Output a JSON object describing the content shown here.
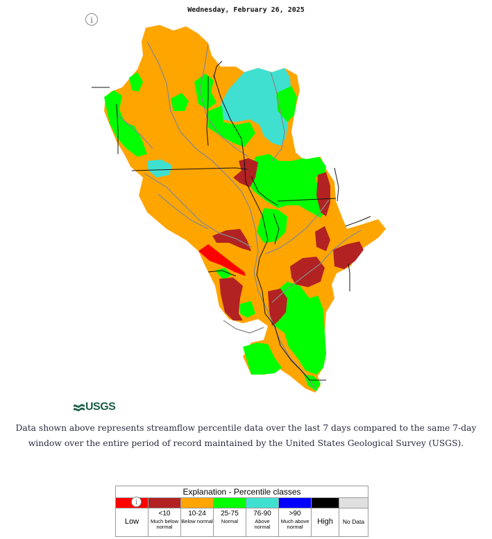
{
  "header": {
    "date": "Wednesday, February 26, 2025"
  },
  "info_icon": "info-icon",
  "colors": {
    "low": "#ff0000",
    "much_below": "#b22222",
    "below": "#ffa500",
    "normal": "#00ff00",
    "above": "#40e0d0",
    "much_above": "#0000ff",
    "high": "#000000",
    "no_data": "#e0e0e0"
  },
  "logo": {
    "text": "USGS"
  },
  "description": "Data shown above represents streamflow percentile data over the last 7 days compared to the same 7-day window over the entire period of record maintained by the United States Geological Survey (USGS).",
  "legend": {
    "title": "Explanation - Percentile classes",
    "classes": [
      {
        "label": "Low",
        "range": "",
        "desc": "",
        "color": "#ff0000"
      },
      {
        "label": "",
        "range": "<10",
        "desc": "Much below normal",
        "color": "#b22222"
      },
      {
        "label": "",
        "range": "10-24",
        "desc": "Below normal",
        "color": "#ffa500"
      },
      {
        "label": "",
        "range": "25-75",
        "desc": "Normal",
        "color": "#00ff00"
      },
      {
        "label": "",
        "range": "76-90",
        "desc": "Above normal",
        "color": "#40e0d0"
      },
      {
        "label": "",
        "range": ">90",
        "desc": "Much above normal",
        "color": "#0000ff"
      },
      {
        "label": "High",
        "range": "",
        "desc": "",
        "color": "#000000"
      },
      {
        "label": "No Data",
        "range": "",
        "desc": "",
        "color": "#e0e0e0"
      }
    ]
  }
}
